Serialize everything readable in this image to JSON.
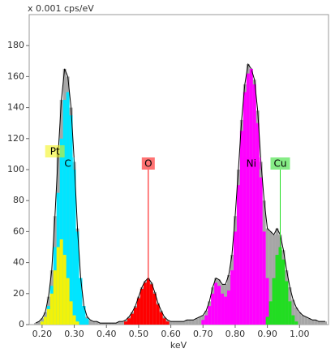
{
  "chart_data": {
    "type": "spectrum",
    "title": "x 0.001 cps/eV",
    "x_label": "keV",
    "xlim": [
      0.16,
      1.09
    ],
    "ylim": [
      0,
      200
    ],
    "xticks": [
      {
        "value": 0.2,
        "label": "0.20"
      },
      {
        "value": 0.3,
        "label": "0.30"
      },
      {
        "value": 0.4,
        "label": "0.40"
      },
      {
        "value": 0.5,
        "label": "0.50"
      },
      {
        "value": 0.6,
        "label": "0.60"
      },
      {
        "value": 0.7,
        "label": "0.70"
      },
      {
        "value": 0.8,
        "label": "0.80"
      },
      {
        "value": 0.9,
        "label": "0.90"
      },
      {
        "value": 1.0,
        "label": "1.00"
      }
    ],
    "yticks": [
      0,
      20,
      40,
      60,
      80,
      100,
      120,
      140,
      160,
      180
    ],
    "bin_width": 0.01,
    "total": {
      "color": "#a6a6a6",
      "outline": "#000000",
      "x": [
        0.18,
        0.19,
        0.2,
        0.21,
        0.22,
        0.23,
        0.24,
        0.25,
        0.26,
        0.27,
        0.28,
        0.29,
        0.3,
        0.31,
        0.32,
        0.33,
        0.34,
        0.35,
        0.36,
        0.37,
        0.38,
        0.39,
        0.4,
        0.41,
        0.42,
        0.43,
        0.44,
        0.45,
        0.46,
        0.47,
        0.48,
        0.49,
        0.5,
        0.51,
        0.52,
        0.53,
        0.54,
        0.55,
        0.56,
        0.57,
        0.58,
        0.59,
        0.6,
        0.61,
        0.62,
        0.63,
        0.64,
        0.65,
        0.66,
        0.67,
        0.68,
        0.69,
        0.7,
        0.71,
        0.72,
        0.73,
        0.74,
        0.75,
        0.76,
        0.77,
        0.78,
        0.79,
        0.8,
        0.81,
        0.82,
        0.83,
        0.84,
        0.85,
        0.86,
        0.87,
        0.88,
        0.89,
        0.9,
        0.91,
        0.92,
        0.93,
        0.94,
        0.95,
        0.96,
        0.97,
        0.98,
        0.99,
        1.0,
        1.01,
        1.02,
        1.03,
        1.04,
        1.05,
        1.06,
        1.07,
        1.08
      ],
      "values": [
        1,
        2,
        4,
        8,
        18,
        35,
        70,
        110,
        145,
        165,
        160,
        140,
        105,
        62,
        30,
        12,
        5,
        3,
        2,
        2,
        1,
        1,
        1,
        1,
        1,
        1,
        2,
        2,
        3,
        5,
        8,
        12,
        18,
        24,
        28,
        30,
        27,
        21,
        14,
        9,
        5,
        3,
        2,
        2,
        2,
        2,
        2,
        3,
        3,
        3,
        4,
        5,
        6,
        9,
        15,
        24,
        30,
        29,
        26,
        26,
        32,
        45,
        70,
        100,
        132,
        155,
        168,
        165,
        158,
        138,
        105,
        80,
        62,
        60,
        58,
        62,
        58,
        48,
        35,
        24,
        16,
        11,
        8,
        6,
        5,
        4,
        3,
        3,
        2,
        2,
        2
      ]
    },
    "series": [
      {
        "name": "C",
        "color": "#00e5ff",
        "x": [
          0.2,
          0.21,
          0.22,
          0.23,
          0.24,
          0.25,
          0.26,
          0.27,
          0.28,
          0.29,
          0.3,
          0.31,
          0.32,
          0.33,
          0.34
        ],
        "values": [
          2,
          5,
          12,
          25,
          50,
          85,
          120,
          145,
          150,
          135,
          100,
          60,
          30,
          12,
          4
        ]
      },
      {
        "name": "Pt",
        "color": "#f2f20a",
        "x": [
          0.2,
          0.21,
          0.22,
          0.23,
          0.24,
          0.25,
          0.26,
          0.27,
          0.28,
          0.29,
          0.3,
          0.31
        ],
        "values": [
          2,
          5,
          10,
          20,
          35,
          50,
          55,
          45,
          30,
          15,
          6,
          2
        ]
      },
      {
        "name": "O",
        "color": "#ff0000",
        "x": [
          0.46,
          0.47,
          0.48,
          0.49,
          0.5,
          0.51,
          0.52,
          0.53,
          0.54,
          0.55,
          0.56,
          0.57,
          0.58,
          0.59
        ],
        "values": [
          2,
          4,
          7,
          11,
          17,
          23,
          27,
          29,
          26,
          20,
          13,
          8,
          4,
          2
        ]
      },
      {
        "name": "Ni",
        "color": "#ff00ff",
        "x": [
          0.7,
          0.71,
          0.72,
          0.73,
          0.74,
          0.75,
          0.76,
          0.77,
          0.78,
          0.79,
          0.8,
          0.81,
          0.82,
          0.83,
          0.84,
          0.85,
          0.86,
          0.87,
          0.88,
          0.89,
          0.9,
          0.91,
          0.92,
          0.93
        ],
        "values": [
          3,
          6,
          12,
          20,
          27,
          25,
          20,
          18,
          22,
          35,
          60,
          90,
          125,
          150,
          162,
          165,
          155,
          130,
          95,
          60,
          30,
          12,
          4,
          1
        ]
      },
      {
        "name": "Cu",
        "color": "#22dd22",
        "x": [
          0.9,
          0.91,
          0.92,
          0.93,
          0.94,
          0.95,
          0.96,
          0.97,
          0.98,
          0.99
        ],
        "values": [
          5,
          15,
          30,
          45,
          50,
          42,
          28,
          15,
          6,
          2
        ]
      }
    ]
  }
}
